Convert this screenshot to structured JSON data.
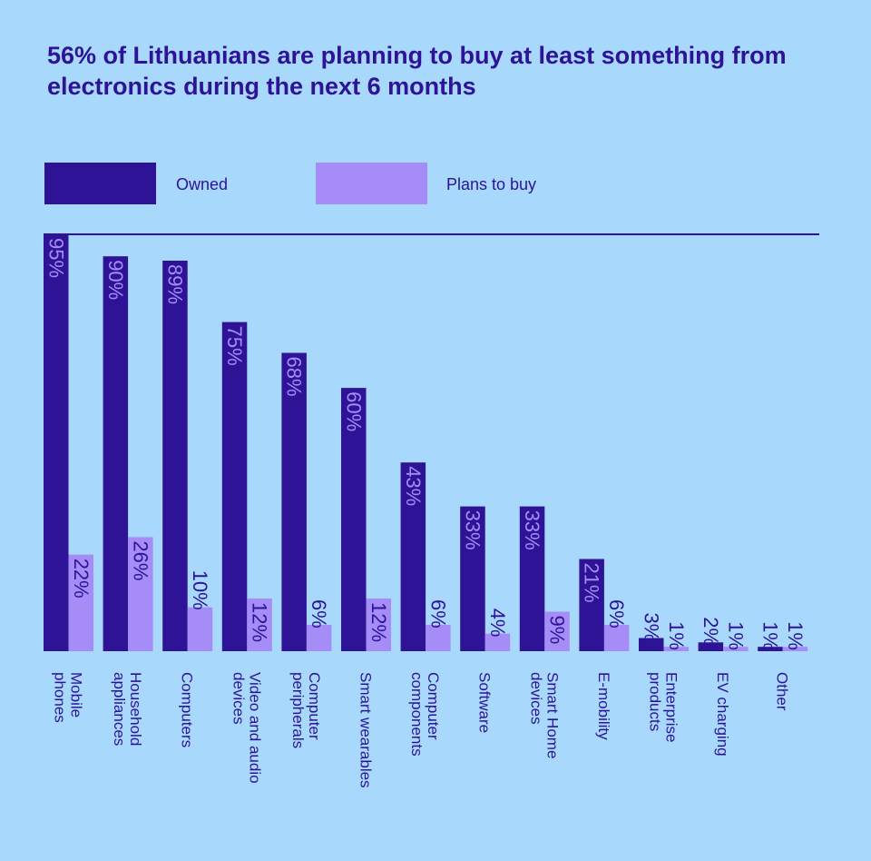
{
  "title": "56% of Lithuanians are planning to buy at least something from electronics during the next 6 months",
  "colors": {
    "background": "#a8d8fb",
    "owned": "#2e1397",
    "plans_to_buy": "#a58cf7",
    "text": "#2e1397"
  },
  "chart_data": {
    "type": "bar",
    "title": "56% of Lithuanians are planning to buy at least something from electronics during the next 6 months",
    "categories": [
      [
        "Mobile",
        "phones"
      ],
      [
        "Household",
        "appliances"
      ],
      [
        "Computers"
      ],
      [
        "Video and audio",
        "devices"
      ],
      [
        "Computer",
        "peripherals"
      ],
      [
        "Smart wearables"
      ],
      [
        "Computer",
        "components"
      ],
      [
        "Software"
      ],
      [
        "Smart Home",
        "devices"
      ],
      [
        "E-mobility"
      ],
      [
        "Enterprise",
        "products"
      ],
      [
        "EV charging"
      ],
      [
        "Other"
      ]
    ],
    "series": [
      {
        "name": "Owned",
        "color": "#2e1397",
        "values": [
          95,
          90,
          89,
          75,
          68,
          60,
          43,
          33,
          33,
          21,
          3,
          2,
          1
        ]
      },
      {
        "name": "Plans to buy",
        "color": "#a58cf7",
        "values": [
          22,
          26,
          10,
          12,
          6,
          12,
          6,
          4,
          9,
          6,
          1,
          1,
          1
        ]
      }
    ],
    "value_suffix": "%",
    "ylim": [
      0,
      95
    ],
    "legend": "top-left",
    "grid": false,
    "xlabel": "",
    "ylabel": ""
  }
}
